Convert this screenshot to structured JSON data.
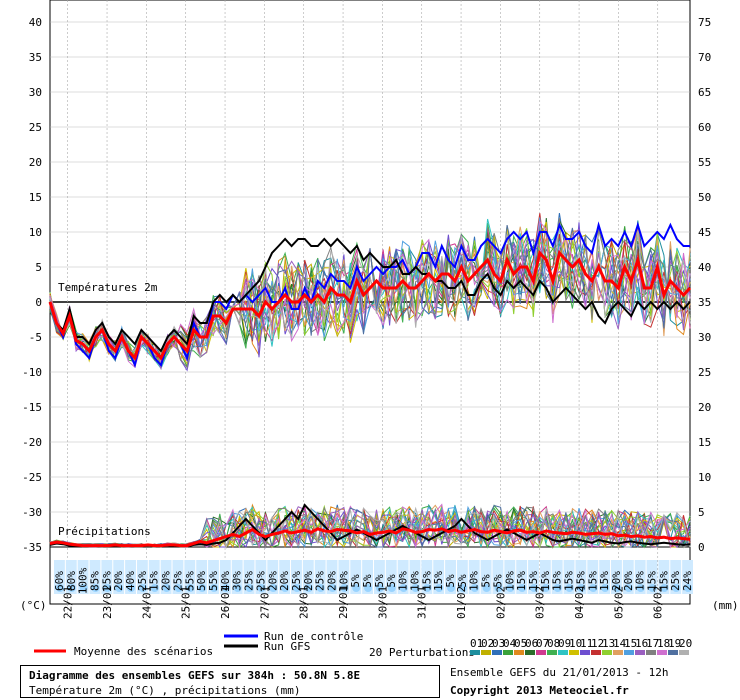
{
  "chart_data": {
    "type": "line",
    "y_left_ticks": [
      40,
      35,
      30,
      25,
      20,
      15,
      10,
      5,
      0,
      -5,
      -10,
      -15,
      -20,
      -25,
      -30,
      -35
    ],
    "y_right_ticks": [
      75,
      70,
      65,
      60,
      55,
      50,
      45,
      40,
      35,
      30,
      25,
      20,
      15,
      10,
      5,
      0
    ],
    "ylim_temp": [
      -35,
      40
    ],
    "ylim_precip": [
      0,
      75
    ],
    "y_left_unit": "(°C)",
    "y_right_unit": "(mm)",
    "x_tick_labels": [
      "22/01",
      "23/01",
      "24/01",
      "25/01",
      "26/01",
      "27/01",
      "28/01",
      "29/01",
      "30/01",
      "31/01",
      "01/02",
      "02/02",
      "03/02",
      "04/02",
      "05/02",
      "06/02"
    ],
    "panel_labels": {
      "temperature": "Températures 2m",
      "precipitation": "Précipitations"
    },
    "probability_labels": [
      "60%",
      "80%",
      "100%",
      "85%",
      "25%",
      "20%",
      "40%",
      "25%",
      "15%",
      "20%",
      "25%",
      "55%",
      "50%",
      "55%",
      "40%",
      "30%",
      "25%",
      "25%",
      "20%",
      "20%",
      "25%",
      "20%",
      "25%",
      "20%",
      "10%",
      "5%",
      "5%",
      "5%",
      "5%",
      "10%",
      "10%",
      "15%",
      "15%",
      "5%",
      "5%",
      "10%",
      "5%",
      "5%",
      "10%",
      "15%",
      "15%",
      "15%",
      "15%",
      "15%",
      "15%",
      "15%",
      "15%",
      "20%",
      "20%",
      "10%",
      "15%",
      "15%",
      "25%",
      "24%"
    ],
    "x_step_hours": 6,
    "x_start": "21/01/2013 12h",
    "mean": [
      0,
      -3,
      -4.5,
      -2,
      -5.5,
      -6,
      -7,
      -5,
      -4,
      -6,
      -7,
      -5,
      -7,
      -8,
      -5,
      -6,
      -7,
      -8,
      -6,
      -5,
      -6,
      -7,
      -4,
      -5,
      -5,
      -2,
      -2,
      -3,
      -1,
      -1,
      -1,
      -1,
      -2,
      0,
      -1,
      0,
      1,
      0,
      0,
      1,
      0,
      1,
      0,
      2,
      1,
      1,
      0,
      3,
      1,
      2,
      3,
      2,
      2,
      2,
      3,
      2,
      2,
      3,
      4,
      3,
      4,
      4,
      3,
      5,
      3,
      4,
      5,
      6,
      4,
      3,
      6,
      4,
      5,
      5,
      3,
      7,
      6,
      3,
      7,
      6,
      5,
      6,
      4,
      3,
      5,
      3,
      3,
      2,
      5,
      3,
      6,
      2,
      2,
      5,
      1,
      3,
      2,
      1,
      2
    ],
    "control": [
      0,
      -3,
      -5,
      -1.5,
      -6,
      -7,
      -8,
      -5,
      -4,
      -7,
      -8,
      -5,
      -7,
      -9,
      -5,
      -6,
      -8,
      -9,
      -6,
      -5,
      -6,
      -8,
      -3,
      -5,
      -5,
      0,
      0,
      -1,
      1,
      0,
      1,
      0,
      1,
      2,
      0,
      0,
      2,
      -1,
      -1,
      2,
      0,
      3,
      2,
      4,
      3,
      3,
      2,
      5,
      3,
      4,
      5,
      4,
      5,
      5,
      6,
      4,
      5,
      7,
      7,
      5,
      8,
      6,
      5,
      8,
      6,
      6,
      8,
      9,
      8,
      7,
      9,
      10,
      9,
      10,
      7,
      10,
      10,
      8,
      11,
      9,
      9,
      10,
      8,
      7,
      11,
      8,
      9,
      8,
      10,
      8,
      11,
      8,
      9,
      10,
      9,
      11,
      9,
      8,
      8
    ],
    "gfs": [
      0,
      -3,
      -4,
      -1,
      -5,
      -5,
      -6,
      -4,
      -3,
      -5,
      -6,
      -4,
      -5,
      -6,
      -4,
      -5,
      -6,
      -7,
      -5,
      -4,
      -5,
      -6,
      -2,
      -3,
      -3,
      0,
      1,
      0,
      1,
      0,
      1,
      2,
      3,
      5,
      7,
      8,
      9,
      8,
      9,
      9,
      8,
      8,
      9,
      8,
      9,
      8,
      7,
      8,
      6,
      7,
      6,
      5,
      5,
      6,
      4,
      4,
      5,
      4,
      4,
      3,
      3,
      2,
      2,
      3,
      1,
      1,
      3,
      4,
      2,
      1,
      3,
      2,
      3,
      2,
      1,
      3,
      2,
      0,
      1,
      2,
      1,
      0,
      -1,
      0,
      -2,
      -3,
      -1,
      0,
      -1,
      -2,
      0,
      -1,
      0,
      -1,
      0,
      -1,
      0,
      -1,
      0
    ],
    "precip_mean": [
      0.5,
      0.7,
      0.6,
      0.4,
      0.3,
      0.2,
      0.2,
      0.2,
      0.2,
      0.2,
      0.3,
      0.2,
      0.2,
      0.2,
      0.2,
      0.3,
      0.2,
      0.2,
      0.3,
      0.3,
      0.2,
      0.2,
      0.5,
      0.8,
      0.6,
      0.9,
      1.2,
      1.5,
      1.8,
      1.5,
      2,
      2.5,
      1.8,
      1.5,
      1.8,
      2,
      2.3,
      2,
      2.2,
      2.4,
      2.1,
      2.6,
      2.3,
      2.2,
      2.5,
      2.4,
      2.3,
      2,
      2.2,
      1.8,
      2,
      2.1,
      2.3,
      2,
      2.6,
      2.4,
      2.1,
      2.2,
      2.5,
      2.4,
      2.6,
      2.2,
      2.4,
      2.1,
      2.3,
      2.5,
      2.2,
      2.1,
      2.4,
      2.2,
      2,
      2.3,
      2.4,
      2.1,
      2.2,
      2,
      2.3,
      2.1,
      2,
      1.9,
      2.1,
      2,
      1.8,
      1.9,
      2,
      1.8,
      1.9,
      1.6,
      1.7,
      1.5,
      1.6,
      1.4,
      1.5,
      1.3,
      1.4,
      1.2,
      1.3,
      1.2,
      1.1
    ],
    "precip_gfs": [
      0.3,
      0.5,
      0.4,
      0.2,
      0.1,
      0.1,
      0.1,
      0.1,
      0.1,
      0.1,
      0.2,
      0.1,
      0.1,
      0.1,
      0.1,
      0.2,
      0.1,
      0.1,
      0.2,
      0.2,
      0.1,
      0.1,
      0.3,
      0.4,
      0.3,
      0.5,
      0.6,
      1,
      2,
      3,
      4,
      3,
      2,
      1,
      2,
      3,
      4,
      5,
      4,
      6,
      5,
      4,
      3,
      2,
      1,
      1.5,
      2,
      2.5,
      2,
      1.5,
      1,
      1.5,
      2,
      2.5,
      3,
      2.5,
      2,
      1.5,
      1,
      1.5,
      2,
      2.5,
      3,
      4,
      3,
      2,
      1.5,
      1,
      1.5,
      2,
      2.5,
      2,
      1.5,
      1,
      1.5,
      2,
      1.5,
      1,
      0.8,
      1,
      1.2,
      1,
      0.8,
      0.6,
      1,
      0.8,
      0.6,
      0.5,
      0.7,
      0.8,
      0.6,
      0.5,
      0.4,
      0.5,
      0.6,
      0.5,
      0.4,
      0.3,
      0.4
    ],
    "perturbation_colors": [
      "#1e8f9e",
      "#c0b000",
      "#2f6fb8",
      "#3aa23a",
      "#e08a1e",
      "#2a6e2a",
      "#d03a90",
      "#40b050",
      "#2fc4c4",
      "#d0c000",
      "#6e4fd0",
      "#c43030",
      "#8fcf30",
      "#e0a060",
      "#50a0e0",
      "#9a5fc0",
      "#808080",
      "#cf70cf",
      "#5070a0",
      "#b0b0b0"
    ],
    "series": [
      {
        "name": "Moyenne des scénarios",
        "color": "#ff0000"
      },
      {
        "name": "Run de contrôle",
        "color": "#0000ff"
      },
      {
        "name": "Run GFS",
        "color": "#000000"
      }
    ],
    "perturbations_label": "20 Perturbations",
    "perturbation_numbers": [
      "01",
      "02",
      "03",
      "04",
      "05",
      "06",
      "07",
      "08",
      "09",
      "10",
      "11",
      "12",
      "13",
      "14",
      "15",
      "16",
      "17",
      "18",
      "19",
      "20"
    ]
  },
  "footer": {
    "title": "Diagramme des ensembles GEFS sur 384h : 50.8N 5.8E",
    "subtitle": "Température 2m (°C) , précipitations (mm)",
    "run": "Ensemble GEFS du 21/01/2013 - 12h",
    "copyright": "Copyright 2013 Meteociel.fr"
  }
}
